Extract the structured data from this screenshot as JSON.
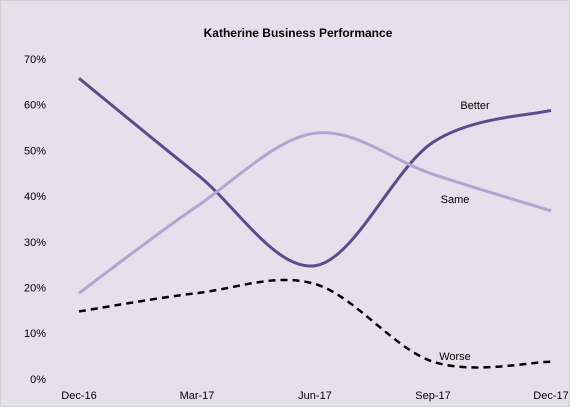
{
  "chart_data": {
    "type": "line",
    "title": "Katherine Business Performance",
    "categories": [
      "Dec-16",
      "Mar-17",
      "Jun-17",
      "Sep-17",
      "Dec-17"
    ],
    "series": [
      {
        "name": "Better",
        "color": "#5e4b8b",
        "line_style": "solid",
        "values": [
          66,
          45,
          25,
          52,
          59
        ]
      },
      {
        "name": "Same",
        "color": "#b3a5cf",
        "line_style": "solid",
        "values": [
          19,
          38,
          54,
          45,
          37
        ]
      },
      {
        "name": "Worse",
        "color": "#000000",
        "line_style": "dashed",
        "values": [
          15,
          19,
          21,
          4,
          4
        ]
      }
    ],
    "ylim": [
      0,
      70
    ],
    "yticks": [
      {
        "value": 0,
        "label": "0%"
      },
      {
        "value": 10,
        "label": "10%"
      },
      {
        "value": 20,
        "label": "20%"
      },
      {
        "value": 30,
        "label": "30%"
      },
      {
        "value": 40,
        "label": "40%"
      },
      {
        "value": 50,
        "label": "50%"
      },
      {
        "value": 60,
        "label": "60%"
      },
      {
        "value": 70,
        "label": "70%"
      }
    ],
    "grid": false,
    "smooth": true
  }
}
